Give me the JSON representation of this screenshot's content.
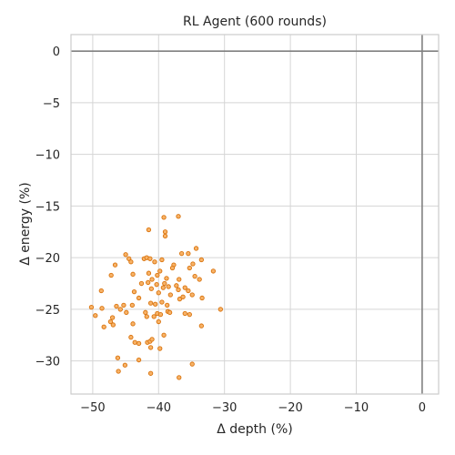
{
  "chart_data": {
    "type": "scatter",
    "title": "RL Agent (600 rounds)",
    "xlabel": "Δ depth (%)",
    "ylabel": "Δ energy (%)",
    "xlim": [
      -53.3,
      2.5
    ],
    "ylim": [
      -33.2,
      1.6
    ],
    "xticks": [
      -50,
      -40,
      -30,
      -20,
      -10,
      0
    ],
    "yticks": [
      0,
      -5,
      -10,
      -15,
      -20,
      -25,
      -30
    ],
    "xtick_labels": [
      "−50",
      "−40",
      "−30",
      "−20",
      "−10",
      "0"
    ],
    "ytick_labels": [
      "0",
      "−5",
      "−10",
      "−15",
      "−20",
      "−25",
      "−30"
    ],
    "grid": true,
    "reference_lines": {
      "x": 0,
      "y": 0,
      "color": "#808080"
    },
    "marker": {
      "fill": "#f7b267",
      "edge": "#d9730d"
    },
    "points": [
      {
        "x": -41.5,
        "y": -17.3
      },
      {
        "x": -39.2,
        "y": -16.1
      },
      {
        "x": -37.0,
        "y": -16.0
      },
      {
        "x": -39.0,
        "y": -17.5
      },
      {
        "x": -39.0,
        "y": -17.9
      },
      {
        "x": -34.3,
        "y": -19.1
      },
      {
        "x": -36.5,
        "y": -19.6
      },
      {
        "x": -35.5,
        "y": -19.6
      },
      {
        "x": -45.0,
        "y": -19.7
      },
      {
        "x": -44.5,
        "y": -20.1
      },
      {
        "x": -44.2,
        "y": -20.4
      },
      {
        "x": -42.2,
        "y": -20.1
      },
      {
        "x": -41.8,
        "y": -20.0
      },
      {
        "x": -41.3,
        "y": -20.1
      },
      {
        "x": -40.6,
        "y": -20.4
      },
      {
        "x": -39.5,
        "y": -20.2
      },
      {
        "x": -37.7,
        "y": -20.7
      },
      {
        "x": -37.9,
        "y": -21.0
      },
      {
        "x": -33.5,
        "y": -20.2
      },
      {
        "x": -34.8,
        "y": -20.6
      },
      {
        "x": -35.3,
        "y": -21.0
      },
      {
        "x": -31.7,
        "y": -21.3
      },
      {
        "x": -46.6,
        "y": -20.7
      },
      {
        "x": -47.2,
        "y": -21.7
      },
      {
        "x": -43.9,
        "y": -21.6
      },
      {
        "x": -39.8,
        "y": -21.3
      },
      {
        "x": -41.5,
        "y": -21.5
      },
      {
        "x": -41.0,
        "y": -22.1
      },
      {
        "x": -40.2,
        "y": -21.7
      },
      {
        "x": -38.8,
        "y": -22.0
      },
      {
        "x": -36.9,
        "y": -22.1
      },
      {
        "x": -34.5,
        "y": -21.8
      },
      {
        "x": -33.8,
        "y": -22.1
      },
      {
        "x": -42.6,
        "y": -22.5
      },
      {
        "x": -41.6,
        "y": -22.4
      },
      {
        "x": -40.3,
        "y": -22.6
      },
      {
        "x": -39.1,
        "y": -22.5
      },
      {
        "x": -38.5,
        "y": -22.8
      },
      {
        "x": -37.3,
        "y": -22.7
      },
      {
        "x": -36.0,
        "y": -22.9
      },
      {
        "x": -48.7,
        "y": -23.2
      },
      {
        "x": -43.7,
        "y": -23.3
      },
      {
        "x": -41.1,
        "y": -23.0
      },
      {
        "x": -40.0,
        "y": -23.4
      },
      {
        "x": -39.3,
        "y": -22.9
      },
      {
        "x": -38.2,
        "y": -23.6
      },
      {
        "x": -37.0,
        "y": -23.1
      },
      {
        "x": -35.5,
        "y": -23.2
      },
      {
        "x": -34.9,
        "y": -23.6
      },
      {
        "x": -33.4,
        "y": -23.9
      },
      {
        "x": -45.3,
        "y": -24.6
      },
      {
        "x": -44.0,
        "y": -24.6
      },
      {
        "x": -43.0,
        "y": -23.9
      },
      {
        "x": -41.2,
        "y": -24.4
      },
      {
        "x": -40.5,
        "y": -24.5
      },
      {
        "x": -39.5,
        "y": -24.3
      },
      {
        "x": -38.7,
        "y": -24.6
      },
      {
        "x": -36.8,
        "y": -24.0
      },
      {
        "x": -36.3,
        "y": -23.8
      },
      {
        "x": -50.2,
        "y": -24.8
      },
      {
        "x": -48.6,
        "y": -24.9
      },
      {
        "x": -46.4,
        "y": -24.7
      },
      {
        "x": -45.8,
        "y": -25.0
      },
      {
        "x": -44.9,
        "y": -25.3
      },
      {
        "x": -42.0,
        "y": -25.3
      },
      {
        "x": -41.8,
        "y": -25.7
      },
      {
        "x": -40.7,
        "y": -25.7
      },
      {
        "x": -40.2,
        "y": -25.4
      },
      {
        "x": -39.7,
        "y": -25.5
      },
      {
        "x": -38.6,
        "y": -25.2
      },
      {
        "x": -38.3,
        "y": -25.3
      },
      {
        "x": -36.0,
        "y": -25.4
      },
      {
        "x": -35.3,
        "y": -25.5
      },
      {
        "x": -30.6,
        "y": -25.0
      },
      {
        "x": -49.6,
        "y": -25.6
      },
      {
        "x": -47.0,
        "y": -25.8
      },
      {
        "x": -47.3,
        "y": -26.2
      },
      {
        "x": -46.9,
        "y": -26.5
      },
      {
        "x": -48.3,
        "y": -26.7
      },
      {
        "x": -43.9,
        "y": -26.4
      },
      {
        "x": -40.0,
        "y": -26.2
      },
      {
        "x": -33.5,
        "y": -26.6
      },
      {
        "x": -44.2,
        "y": -27.7
      },
      {
        "x": -43.6,
        "y": -28.2
      },
      {
        "x": -43.0,
        "y": -28.3
      },
      {
        "x": -41.7,
        "y": -28.2
      },
      {
        "x": -41.3,
        "y": -28.1
      },
      {
        "x": -41.0,
        "y": -27.9
      },
      {
        "x": -39.2,
        "y": -27.5
      },
      {
        "x": -41.2,
        "y": -28.7
      },
      {
        "x": -39.8,
        "y": -28.8
      },
      {
        "x": -46.2,
        "y": -29.7
      },
      {
        "x": -43.0,
        "y": -29.9
      },
      {
        "x": -45.1,
        "y": -30.4
      },
      {
        "x": -46.1,
        "y": -31.0
      },
      {
        "x": -41.2,
        "y": -31.2
      },
      {
        "x": -36.9,
        "y": -31.6
      },
      {
        "x": -34.9,
        "y": -30.3
      }
    ]
  }
}
